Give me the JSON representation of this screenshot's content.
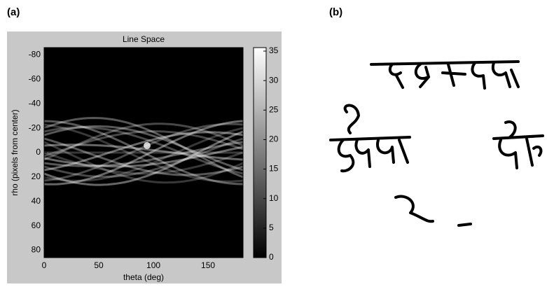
{
  "panel_labels": [
    "(a)",
    "(b)"
  ],
  "chart_data": {
    "type": "heatmap",
    "title": "Line Space",
    "x_label": "theta (deg)",
    "y_label": "rho (pixels from center)",
    "xlim": [
      0,
      182
    ],
    "xticks": [
      0,
      50,
      100,
      150
    ],
    "ylim": [
      -86,
      86
    ],
    "yticks": [
      -80,
      -60,
      -40,
      -20,
      0,
      20,
      40,
      60,
      80
    ],
    "y_inverted": true,
    "colorbar": {
      "lim": [
        0,
        35
      ],
      "ticks": [
        0,
        5,
        10,
        15,
        20,
        25,
        30,
        35
      ],
      "colors": [
        "#000000",
        "#ffffff"
      ]
    }
  }
}
